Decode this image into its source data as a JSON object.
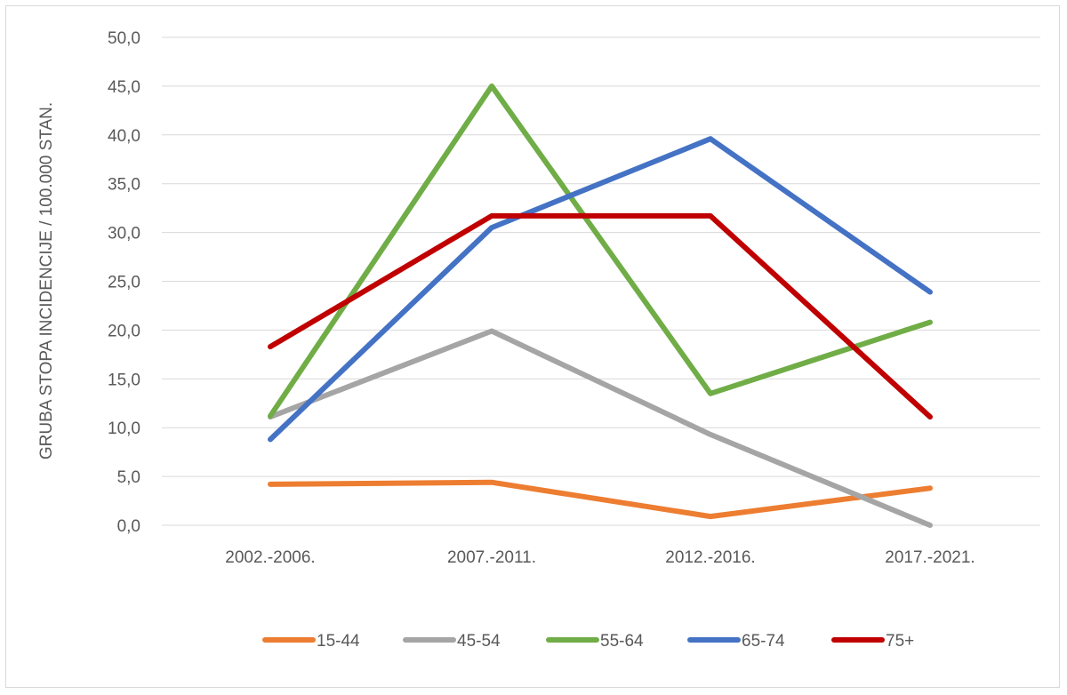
{
  "chart_data": {
    "type": "line",
    "title": "",
    "xlabel": "",
    "ylabel": "GRUBA STOPA INCIDENCIJE / 100.000 STAN.",
    "categories": [
      "2002.-2006.",
      "2007.-2011.",
      "2012.-2016.",
      "2017.-2021."
    ],
    "y_ticks": [
      "0,0",
      "5,0",
      "10,0",
      "15,0",
      "20,0",
      "25,0",
      "30,0",
      "35,0",
      "40,0",
      "45,0",
      "50,0"
    ],
    "ylim": [
      0,
      50
    ],
    "grid": true,
    "legend_position": "bottom",
    "series": [
      {
        "name": "15-44",
        "color": "#ED7D31",
        "values": [
          4.2,
          4.4,
          0.9,
          3.8
        ]
      },
      {
        "name": "45-54",
        "color": "#A5A5A5",
        "values": [
          11.1,
          19.9,
          9.3,
          0.0
        ]
      },
      {
        "name": "55-64",
        "color": "#70AD47",
        "values": [
          11.2,
          45.0,
          13.5,
          20.8
        ]
      },
      {
        "name": "65-74",
        "color": "#4472C4",
        "values": [
          8.8,
          30.5,
          39.6,
          23.9
        ]
      },
      {
        "name": "75+",
        "color": "#C00000",
        "values": [
          18.3,
          31.7,
          31.7,
          11.1
        ]
      }
    ]
  }
}
